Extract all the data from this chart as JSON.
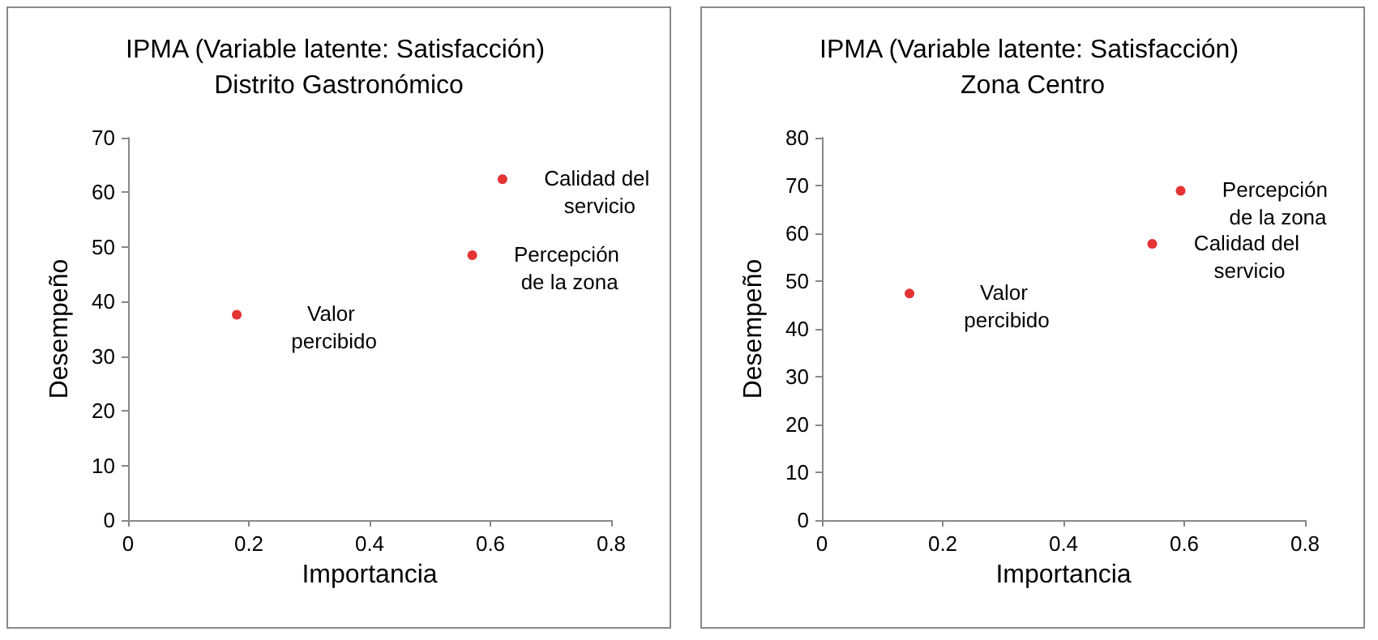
{
  "chart_data": [
    {
      "type": "scatter",
      "title": "IPMA (Variable latente: Satisfacción) Distrito Gastronómico",
      "xlabel": "Importancia",
      "ylabel": "Desempeño",
      "x": [
        0.62,
        0.57,
        0.18
      ],
      "values": [
        62.4,
        48.5,
        37.6
      ],
      "color": "#e00000",
      "marker": "circle",
      "xlim": [
        0,
        0.8
      ],
      "xticks": [
        0,
        0.2,
        0.4,
        0.6,
        0.8
      ],
      "ylim": [
        0,
        70
      ],
      "yticks": [
        0,
        10,
        20,
        30,
        40,
        50,
        60,
        70
      ],
      "annotations": [
        {
          "text": "Calidad del servicio",
          "x": 0.62,
          "y": 62.4
        },
        {
          "text": "Percepción de la zona",
          "x": 0.57,
          "y": 48.5
        },
        {
          "text": "Valor percibido",
          "x": 0.18,
          "y": 37.6
        }
      ]
    },
    {
      "type": "scatter",
      "title": "IPMA (Variable latente: Satisfacción) Zona Centro",
      "xlabel": "Importancia",
      "ylabel": "Desempeño",
      "x": [
        0.594,
        0.547,
        0.145
      ],
      "values": [
        68.9,
        57.8,
        47.4
      ],
      "color": "#e00000",
      "marker": "circle",
      "xlim": [
        0,
        0.8
      ],
      "xticks": [
        0,
        0.2,
        0.4,
        0.6,
        0.8
      ],
      "ylim": [
        0,
        80
      ],
      "yticks": [
        0,
        10,
        20,
        30,
        40,
        50,
        60,
        70,
        80
      ],
      "annotations": [
        {
          "text": "Percepción de la zona",
          "x": 0.594,
          "y": 68.9
        },
        {
          "text": "Calidad del servicio",
          "x": 0.547,
          "y": 57.8
        },
        {
          "text": "Valor percibido",
          "x": 0.145,
          "y": 47.4
        }
      ]
    }
  ]
}
